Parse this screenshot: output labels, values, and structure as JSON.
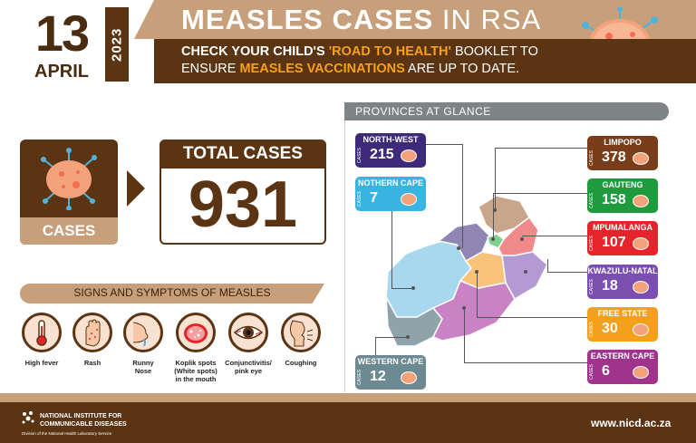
{
  "header": {
    "day": "13",
    "month": "APRIL",
    "year": "2023",
    "title_bold": "MEASLES CASES",
    "title_light": "IN RSA",
    "sub_line1_a": "CHECK YOUR CHILD'S ",
    "sub_line1_hl": "'ROAD TO HEALTH'",
    "sub_line1_b": " BOOKLET TO",
    "sub_line2_a": "ENSURE ",
    "sub_line2_hl": "MEASLES VACCINATIONS",
    "sub_line2_b": " ARE UP TO DATE."
  },
  "cases_card": {
    "label": "CASES"
  },
  "total": {
    "label": "TOTAL CASES",
    "value": "931"
  },
  "signs": {
    "title": "SIGNS AND SYMPTOMS OF MEASLES",
    "items": [
      {
        "l1": "High fever",
        "l2": "",
        "l3": ""
      },
      {
        "l1": "Rash",
        "l2": "",
        "l3": ""
      },
      {
        "l1": "Runny",
        "l2": "Nose",
        "l3": ""
      },
      {
        "l1": "Koplik spots",
        "l2": "(White spots)",
        "l3": "in the mouth"
      },
      {
        "l1": "Conjunctivitis/",
        "l2": "pink eye",
        "l3": ""
      },
      {
        "l1": "Coughing",
        "l2": "",
        "l3": ""
      }
    ]
  },
  "provinces": {
    "title": "PROVINCES AT GLANCE",
    "cases_word": "CASES",
    "items": [
      {
        "name": "NORTH-WEST",
        "value": "215",
        "color": "#3d2b7a"
      },
      {
        "name": "NOTHERN CAPE",
        "value": "7",
        "color": "#39b4e0"
      },
      {
        "name": "WESTERN CAPE",
        "value": "12",
        "color": "#6d8a93"
      },
      {
        "name": "LIMPOPO",
        "value": "378",
        "color": "#7a3d1a"
      },
      {
        "name": "GAUTENG",
        "value": "158",
        "color": "#1f9a3d"
      },
      {
        "name": "MPUMALANGA",
        "value": "107",
        "color": "#e5252b"
      },
      {
        "name": "KWAZULU-NATAL",
        "value": "18",
        "color": "#7b4fb0"
      },
      {
        "name": "FREE STATE",
        "value": "30",
        "color": "#f5a01a"
      },
      {
        "name": "EASTERN CAPE",
        "value": "6",
        "color": "#a0348d"
      }
    ]
  },
  "footer": {
    "org_line1": "NATIONAL INSTITUTE FOR",
    "org_line2": "COMMUNICABLE DISEASES",
    "org_division": "Division of the National Health Laboratory Service",
    "website": "www.nicd.ac.za"
  },
  "colors": {
    "brown_dark": "#5b3413",
    "tan": "#c79f7a",
    "orange_highlight": "#f7a019"
  }
}
